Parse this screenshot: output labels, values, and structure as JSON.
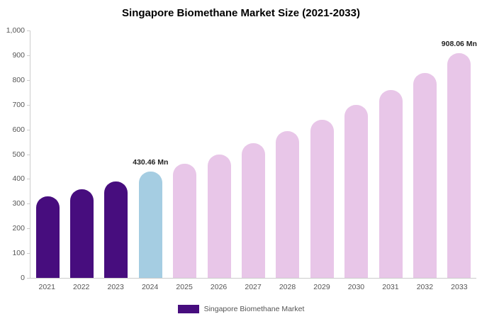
{
  "chart_data": {
    "type": "bar",
    "title": "Singapore Biomethane Market Size (2021-2033)",
    "xlabel": "",
    "ylabel": "",
    "ymax": 1000,
    "ymin": 0,
    "grid": false,
    "legend_position": "bottom",
    "categories": [
      "2021",
      "2022",
      "2023",
      "2024",
      "2025",
      "2026",
      "2027",
      "2028",
      "2029",
      "2030",
      "2031",
      "2032",
      "2033"
    ],
    "values": [
      330,
      358,
      390,
      430.46,
      460,
      500,
      545,
      592,
      640,
      700,
      760,
      828,
      908.06
    ],
    "colors": [
      "#470d7e",
      "#470d7e",
      "#470d7e",
      "#a5cde2",
      "#e8c6e8",
      "#e8c6e8",
      "#e8c6e8",
      "#e8c6e8",
      "#e8c6e8",
      "#e8c6e8",
      "#e8c6e8",
      "#e8c6e8",
      "#e8c6e8"
    ],
    "annotations": [
      {
        "index": 3,
        "text": "430.46 Mn"
      },
      {
        "index": 12,
        "text": "908.06 Mn"
      }
    ],
    "yticks": [
      {
        "label": "1,000",
        "value": 1000
      },
      {
        "label": "900",
        "value": 900
      },
      {
        "label": "800",
        "value": 800
      },
      {
        "label": "700",
        "value": 700
      },
      {
        "label": "600",
        "value": 600
      },
      {
        "label": "500",
        "value": 500
      },
      {
        "label": "400",
        "value": 400
      },
      {
        "label": "300",
        "value": 300
      },
      {
        "label": "200",
        "value": 200
      },
      {
        "label": "100",
        "value": 100
      },
      {
        "label": "0",
        "value": 0
      }
    ]
  },
  "legend": {
    "label": "Singapore Biomethane Market",
    "color": "#470d7e"
  }
}
